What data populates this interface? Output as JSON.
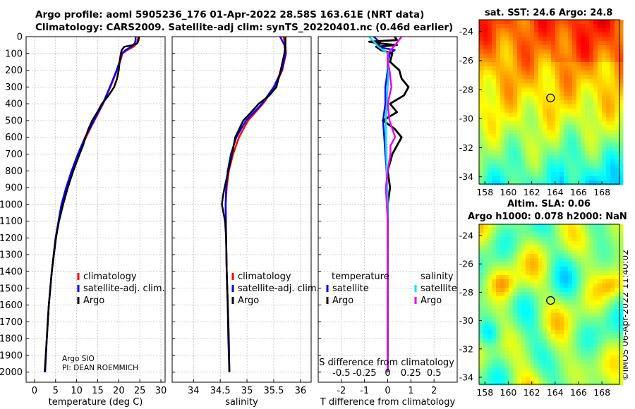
{
  "header": {
    "title_line1": "Argo profile: aoml 5905236_176 01-Apr-2022 28.58S 163.61E (NRT data)",
    "title_line2": "Climatology: CARS2009. Satellite-adj clim: synTS_20220401.nc (0.46d earlier)"
  },
  "colors": {
    "climatology": "#ff0000",
    "satellite": "#0000ff",
    "argo": "#000000",
    "sal_satellite": "#00e5ee",
    "sal_argo": "#ee00ee"
  },
  "chart_data": [
    {
      "type": "line",
      "name": "temperature-profile",
      "xlabel": "temperature (deg C)",
      "ylabel": "",
      "xlim": [
        -2,
        31
      ],
      "ylim": [
        2060,
        0
      ],
      "xticks": [
        0,
        5,
        10,
        15,
        20,
        25,
        30
      ],
      "yticks": [
        0,
        100,
        200,
        300,
        400,
        500,
        600,
        700,
        800,
        900,
        1000,
        1100,
        1200,
        1300,
        1400,
        1500,
        1600,
        1700,
        1800,
        1900,
        2000
      ],
      "grid": true,
      "legend": {
        "position": "lower-center",
        "entries": [
          "climatology",
          "satellite-adj. clim.",
          "Argo"
        ]
      },
      "annotation": [
        "Argo SIO",
        "PI: DEAN ROEMMICH"
      ],
      "series": [
        {
          "name": "climatology",
          "depth": [
            0,
            20,
            40,
            60,
            80,
            100,
            150,
            200,
            300,
            400,
            500,
            600,
            700,
            800,
            900,
            1000,
            1200,
            1400,
            1600,
            1800,
            2000
          ],
          "values": [
            24.6,
            24.5,
            24.3,
            23.5,
            22.0,
            20.9,
            20.3,
            19.6,
            18.0,
            16.3,
            14.2,
            12.2,
            10.5,
            8.9,
            7.6,
            6.5,
            5.0,
            4.1,
            3.4,
            2.9,
            2.5
          ]
        },
        {
          "name": "satellite-adj. clim.",
          "depth": [
            0,
            20,
            40,
            60,
            80,
            100,
            150,
            200,
            300,
            400,
            500,
            600,
            700,
            800,
            900,
            1000,
            1200,
            1400,
            1600,
            1800,
            2000
          ],
          "values": [
            24.0,
            24.0,
            23.8,
            23.0,
            21.6,
            20.7,
            20.2,
            19.5,
            17.9,
            16.2,
            14.1,
            12.0,
            10.3,
            8.8,
            7.5,
            6.4,
            5.0,
            4.1,
            3.4,
            2.9,
            2.5
          ]
        },
        {
          "name": "Argo",
          "depth": [
            0,
            20,
            40,
            50,
            60,
            80,
            100,
            150,
            200,
            250,
            300,
            350,
            400,
            450,
            500,
            550,
            600,
            650,
            700,
            800,
            900,
            1000,
            1100,
            1200,
            1400,
            1600,
            1800,
            2000
          ],
          "values": [
            24.8,
            24.7,
            24.4,
            23.4,
            21.3,
            20.7,
            20.5,
            20.2,
            20.0,
            19.6,
            18.9,
            17.6,
            16.0,
            14.9,
            13.7,
            12.8,
            12.1,
            11.5,
            10.7,
            9.2,
            7.9,
            6.8,
            5.8,
            5.1,
            4.1,
            3.4,
            2.9,
            2.4
          ]
        }
      ]
    },
    {
      "type": "line",
      "name": "salinity-profile",
      "xlabel": "salinity",
      "xlim": [
        33.6,
        36.2
      ],
      "ylim": [
        2060,
        0
      ],
      "xticks": [
        34,
        34.5,
        35,
        35.5,
        36
      ],
      "grid": true,
      "legend": {
        "position": "lower-center",
        "entries": [
          "climatology",
          "satellite-adj. clim.",
          "Argo"
        ]
      },
      "series": [
        {
          "name": "climatology",
          "depth": [
            0,
            50,
            100,
            200,
            300,
            400,
            500,
            600,
            700,
            800,
            900,
            1000,
            1200,
            1400,
            1600,
            1800,
            2000
          ],
          "values": [
            35.68,
            35.72,
            35.73,
            35.66,
            35.52,
            35.3,
            35.02,
            34.85,
            34.74,
            34.66,
            34.62,
            34.6,
            34.61,
            34.62,
            34.64,
            34.66,
            34.67
          ]
        },
        {
          "name": "satellite-adj. clim.",
          "depth": [
            0,
            50,
            100,
            200,
            300,
            400,
            500,
            600,
            700,
            800,
            900,
            1000,
            1200,
            1400,
            1600,
            1800,
            2000
          ],
          "values": [
            35.62,
            35.7,
            35.72,
            35.65,
            35.5,
            35.28,
            34.98,
            34.8,
            34.7,
            34.64,
            34.61,
            34.6,
            34.61,
            34.62,
            34.64,
            34.66,
            34.67
          ]
        },
        {
          "name": "Argo",
          "depth": [
            0,
            50,
            100,
            200,
            300,
            350,
            400,
            450,
            500,
            600,
            700,
            800,
            900,
            950,
            1000,
            1050,
            1100,
            1200,
            1400,
            1600,
            1800,
            2000
          ],
          "values": [
            35.72,
            35.72,
            35.7,
            35.63,
            35.55,
            35.42,
            35.22,
            35.08,
            34.93,
            34.78,
            34.72,
            34.65,
            34.58,
            34.55,
            34.53,
            34.56,
            34.59,
            34.61,
            34.62,
            34.64,
            34.65,
            34.67
          ]
        }
      ]
    },
    {
      "type": "line",
      "name": "difference-profile",
      "xlabel": "T difference from climatology",
      "x2label": "S difference from climatology",
      "xlim": [
        -3,
        3
      ],
      "ylim": [
        2060,
        0
      ],
      "xticks": [
        -2,
        -1,
        0,
        1,
        2
      ],
      "x2ticks": [
        "-0.5",
        "-0.25",
        "0",
        "0.25",
        "0.5"
      ],
      "grid": true,
      "legend_temperature": {
        "title": "temperature",
        "entries": [
          "satellite",
          "Argo"
        ]
      },
      "legend_salinity": {
        "title": "salinity",
        "entries": [
          "satellite",
          "Argo"
        ]
      },
      "series": [
        {
          "name": "temperature satellite",
          "depth": [
            0,
            40,
            60,
            80,
            100,
            150,
            200,
            300,
            400,
            500,
            600,
            700,
            800,
            1000,
            1200,
            1500,
            1800,
            2000
          ],
          "values": [
            -0.6,
            -0.3,
            -0.5,
            0.3,
            0.1,
            0.0,
            0.0,
            -0.1,
            -0.1,
            -0.2,
            -0.15,
            -0.1,
            -0.05,
            0.0,
            0.0,
            0.0,
            0.0,
            0.0
          ]
        },
        {
          "name": "temperature Argo",
          "depth": [
            0,
            20,
            30,
            40,
            50,
            60,
            80,
            100,
            150,
            200,
            250,
            300,
            350,
            400,
            450,
            500,
            550,
            600,
            650,
            700,
            800,
            900,
            1000,
            1100,
            1200,
            1400,
            1600,
            1800,
            2000
          ],
          "values": [
            0.3,
            0.4,
            -0.8,
            -0.4,
            0.4,
            -0.5,
            -0.3,
            0.2,
            0.1,
            0.5,
            0.6,
            0.9,
            0.7,
            0.1,
            0.4,
            -0.2,
            0.3,
            0.6,
            0.4,
            0.2,
            0.0,
            0.1,
            0.0,
            0.0,
            0.0,
            0.0,
            0.0,
            0.0,
            0.0
          ]
        },
        {
          "name": "salinity satellite",
          "depth": [
            0,
            60,
            100,
            200,
            300,
            400,
            500,
            600,
            800,
            1000,
            1200,
            1500,
            1800,
            2000
          ],
          "values": [
            -0.2,
            -0.1,
            0.0,
            0.01,
            0.0,
            -0.01,
            -0.02,
            -0.02,
            -0.01,
            0.0,
            0.0,
            0.0,
            0.0,
            0.0
          ]
        },
        {
          "name": "salinity Argo",
          "depth": [
            0,
            50,
            100,
            150,
            200,
            300,
            400,
            500,
            600,
            650,
            700,
            800,
            900,
            1000,
            1100,
            1200,
            1400,
            1500,
            1600,
            1800,
            2000
          ],
          "values": [
            0.15,
            0.08,
            0.0,
            0.0,
            0.02,
            0.04,
            0.0,
            0.02,
            0.08,
            0.03,
            0.03,
            0.0,
            -0.02,
            -0.01,
            0.0,
            0.0,
            0.0,
            0.0,
            0.0,
            0.0,
            0.0
          ]
        }
      ]
    },
    {
      "type": "heatmap",
      "name": "sst-map",
      "title": "sat. SST: 24.6 Argo: 24.8",
      "xlim": [
        157.5,
        169.5
      ],
      "ylim": [
        -34.5,
        -23.2
      ],
      "xticks": [
        158,
        160,
        162,
        164,
        166,
        168
      ],
      "yticks": [
        -24,
        -26,
        -28,
        -30,
        -32,
        -34
      ],
      "marker": {
        "lon": 163.61,
        "lat": -28.58
      }
    },
    {
      "type": "heatmap",
      "name": "sla-map",
      "title_line1": "Altim. SLA: 0.06",
      "title_line2": "Argo h1000: 0.078 h2000: NaN",
      "xlim": [
        157.5,
        169.5
      ],
      "ylim": [
        -34.5,
        -23.2
      ],
      "xticks": [
        158,
        160,
        162,
        164,
        166,
        168
      ],
      "yticks": [
        -24,
        -26,
        -28,
        -30,
        -32,
        -34
      ],
      "marker": {
        "lon": 163.61,
        "lat": -28.58
      }
    }
  ],
  "legend_labels": {
    "climatology": "climatology",
    "satellite_adj": "satellite-adj. clim.",
    "argo": "Argo",
    "temperature": "temperature",
    "salinity": "salinity",
    "satellite": "satellite"
  },
  "footer": {
    "stamp": "©IMOS 06-Apr-2022 11:40:02"
  }
}
